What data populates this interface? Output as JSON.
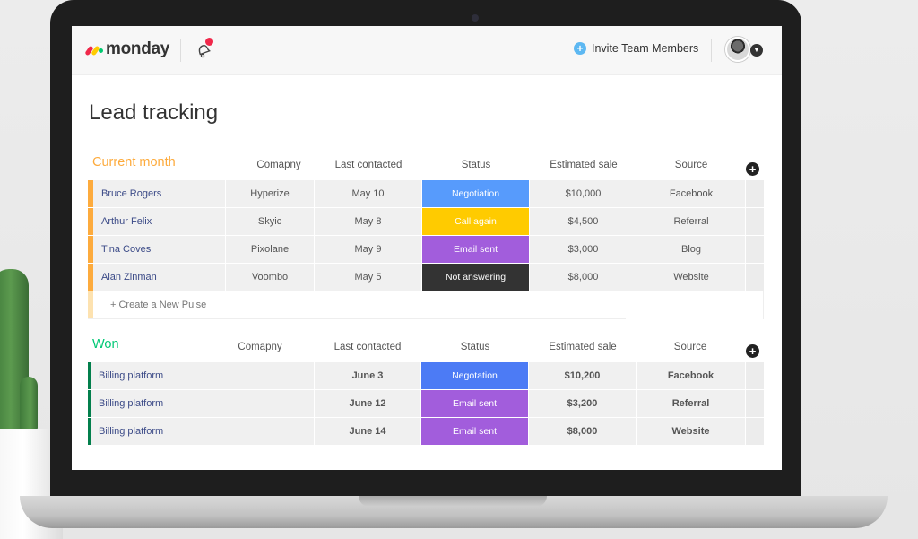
{
  "app": {
    "logo_text": "monday",
    "invite_label": "Invite Team Members",
    "page_title": "Lead tracking",
    "colors": {
      "logo_red": "#f0284a",
      "logo_yellow": "#ffcc00",
      "logo_green": "#00ca72",
      "current_month": "#fdab3d",
      "won": "#00c875",
      "negotiation_light": "#579bfc",
      "negotiation_dark": "#4c7bf5",
      "call_again": "#ffcb00",
      "email_sent": "#a25ddc",
      "not_answering": "#333333"
    }
  },
  "groups": {
    "current": {
      "name": "Current month",
      "columns": {
        "company": "Comapny",
        "last_contacted": "Last contacted",
        "status": "Status",
        "estimated_sale": "Estimated sale",
        "source": "Source"
      },
      "rows": [
        {
          "name": "Bruce Rogers",
          "company": "Hyperize",
          "last_contacted": "May 10",
          "status": "Negotiation",
          "estimated_sale": "$10,000",
          "source": "Facebook"
        },
        {
          "name": "Arthur Felix",
          "company": "Skyic",
          "last_contacted": "May 8",
          "status": "Call again",
          "estimated_sale": "$4,500",
          "source": "Referral"
        },
        {
          "name": "Tina Coves",
          "company": "Pixolane",
          "last_contacted": "May 9",
          "status": "Email sent",
          "estimated_sale": "$3,000",
          "source": "Blog"
        },
        {
          "name": "Alan Zinman",
          "company": "Voombo",
          "last_contacted": "May 5",
          "status": "Not answering",
          "estimated_sale": "$8,000",
          "source": "Website"
        }
      ],
      "new_pulse": "+ Create a New Pulse"
    },
    "won": {
      "name": "Won",
      "columns": {
        "company": "Comapny",
        "last_contacted": "Last contacted",
        "status": "Status",
        "estimated_sale": "Estimated sale",
        "source": "Source"
      },
      "rows": [
        {
          "name": "Billing platform",
          "company": "",
          "last_contacted": "June 3",
          "status": "Negotation",
          "estimated_sale": "$10,200",
          "source": "Facebook"
        },
        {
          "name": "Billing platform",
          "company": "",
          "last_contacted": "June 12",
          "status": "Email sent",
          "estimated_sale": "$3,200",
          "source": "Referral"
        },
        {
          "name": "Billing platform",
          "company": "",
          "last_contacted": "June 14",
          "status": "Email sent",
          "estimated_sale": "$8,000",
          "source": "Website"
        }
      ]
    }
  }
}
